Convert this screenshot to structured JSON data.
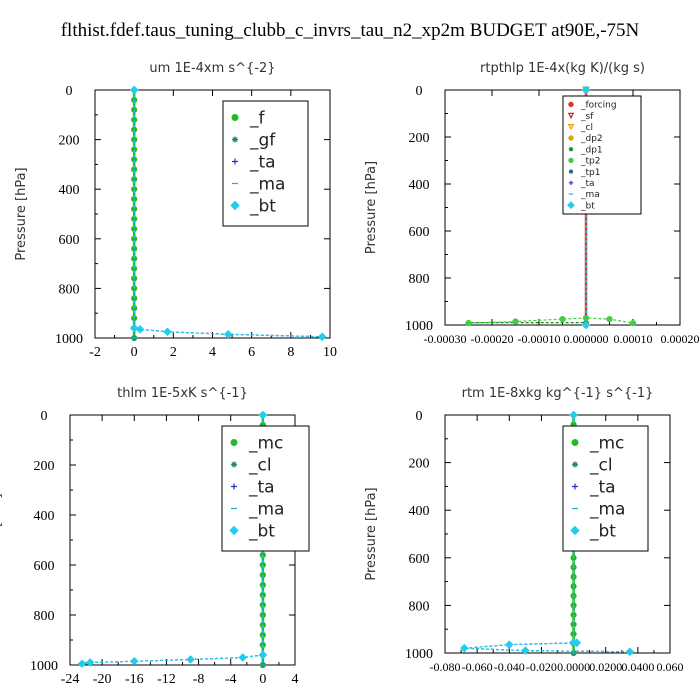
{
  "title": "flthist.fdef.taus_tuning_clubb_c_invrs_tau_n2_xp2m  BUDGET at90E,-75N",
  "chart_data": [
    {
      "type": "line",
      "title": "um   1E-4xm s^{-2}",
      "ylabel": "Pressure [hPa]",
      "xlim": [
        -2,
        10
      ],
      "ylim": [
        1000,
        0
      ],
      "xticks": [
        "-2",
        "0",
        "2",
        "4",
        "6",
        "8",
        "10"
      ],
      "yticks": [
        "0",
        "200",
        "400",
        "600",
        "800",
        "1000"
      ],
      "legend_position": "top-right",
      "legend_size": "large",
      "series": [
        {
          "name": "_f",
          "color": "#22bb22",
          "marker": "circle",
          "points": [
            [
              0,
              0
            ],
            [
              0,
              40
            ],
            [
              0,
              80
            ],
            [
              0,
              120
            ],
            [
              0,
              160
            ],
            [
              0,
              200
            ],
            [
              0,
              240
            ],
            [
              0,
              280
            ],
            [
              0,
              320
            ],
            [
              0,
              360
            ],
            [
              0,
              400
            ],
            [
              0,
              440
            ],
            [
              0,
              480
            ],
            [
              0,
              520
            ],
            [
              0,
              560
            ],
            [
              0,
              600
            ],
            [
              0,
              640
            ],
            [
              0,
              680
            ],
            [
              0,
              720
            ],
            [
              0,
              760
            ],
            [
              0,
              800
            ],
            [
              0,
              840
            ],
            [
              0,
              880
            ],
            [
              0,
              920
            ],
            [
              0,
              960
            ],
            [
              0,
              1000
            ]
          ]
        },
        {
          "name": "_gf",
          "color": "#228866",
          "marker": "star",
          "points": [
            [
              0,
              0
            ],
            [
              0,
              1000
            ]
          ]
        },
        {
          "name": "_ta",
          "color": "#2233cc",
          "marker": "plus",
          "points": [
            [
              0,
              0
            ],
            [
              0,
              960
            ],
            [
              0.3,
              965
            ],
            [
              1.7,
              975
            ],
            [
              4.8,
              985
            ],
            [
              9.6,
              995
            ]
          ]
        },
        {
          "name": "_ma",
          "color": "#22aadd",
          "marker": "dash",
          "points": [
            [
              0,
              0
            ],
            [
              0,
              1000
            ]
          ]
        },
        {
          "name": "_bt",
          "color": "#22ccee",
          "marker": "diamond",
          "points": [
            [
              0,
              0
            ],
            [
              0,
              960
            ],
            [
              0.3,
              965
            ],
            [
              1.7,
              975
            ],
            [
              4.8,
              985
            ],
            [
              9.6,
              995
            ]
          ]
        }
      ]
    },
    {
      "type": "line",
      "title": "rtpthlp  1E-4x(kg K)/(kg s)",
      "ylabel": "Pressure [hPa]",
      "xlim": [
        -0.0003,
        0.0002
      ],
      "ylim": [
        1000,
        0
      ],
      "xticks": [
        "-0.00030",
        "-0.00020",
        "-0.00010",
        "0.000000",
        "0.00010",
        "0.00020"
      ],
      "yticks": [
        "0",
        "200",
        "400",
        "600",
        "800",
        "1000"
      ],
      "legend_position": "top-right",
      "legend_size": "small",
      "series": [
        {
          "name": "_forcing",
          "color": "#dd3322",
          "marker": "circle",
          "points": [
            [
              0,
              0
            ],
            [
              0,
              1000
            ]
          ]
        },
        {
          "name": "_sf",
          "color": "#cc2222",
          "marker": "triangle",
          "points": [
            [
              0,
              0
            ],
            [
              0,
              1000
            ]
          ]
        },
        {
          "name": "_cl",
          "color": "#ee9900",
          "marker": "triangle",
          "points": [
            [
              0,
              0
            ],
            [
              0,
              1000
            ]
          ]
        },
        {
          "name": "_dp2",
          "color": "#ddaa00",
          "marker": "circle",
          "points": [
            [
              0,
              0
            ],
            [
              0,
              1000
            ]
          ]
        },
        {
          "name": "_dp1",
          "color": "#228822",
          "marker": "star",
          "points": [
            [
              0,
              0
            ],
            [
              0,
              990
            ],
            [
              -0.00025,
              990
            ]
          ]
        },
        {
          "name": "_tp2",
          "color": "#44cc44",
          "marker": "circle",
          "points": [
            [
              -0.00025,
              992
            ],
            [
              -0.00015,
              985
            ],
            [
              -5e-05,
              975
            ],
            [
              0,
              970
            ],
            [
              5e-05,
              975
            ],
            [
              0.0001,
              992
            ]
          ]
        },
        {
          "name": "_tp1",
          "color": "#226688",
          "marker": "star",
          "points": [
            [
              0,
              0
            ],
            [
              0,
              1000
            ]
          ]
        },
        {
          "name": "_ta",
          "color": "#2233cc",
          "marker": "plus",
          "points": [
            [
              0,
              0
            ],
            [
              0,
              1000
            ]
          ]
        },
        {
          "name": "_ma",
          "color": "#22aadd",
          "marker": "dash",
          "points": [
            [
              0,
              0
            ],
            [
              0,
              1000
            ]
          ]
        },
        {
          "name": "_bt",
          "color": "#22ccee",
          "marker": "diamond",
          "points": [
            [
              0,
              0
            ],
            [
              0,
              1000
            ]
          ]
        }
      ]
    },
    {
      "type": "line",
      "title": "thlm   1E-5xK s^{-1}",
      "ylabel": "Pressure [hPa]",
      "xlim": [
        -24,
        4
      ],
      "ylim": [
        1000,
        0
      ],
      "xticks": [
        "-24",
        "-20",
        "-16",
        "-12",
        "-8",
        "-4",
        "0",
        "4"
      ],
      "yticks": [
        "0",
        "200",
        "400",
        "600",
        "800",
        "1000"
      ],
      "legend_position": "top-right",
      "legend_size": "large",
      "series": [
        {
          "name": "_mc",
          "color": "#22bb22",
          "marker": "circle",
          "points": [
            [
              0,
              0
            ],
            [
              0,
              40
            ],
            [
              0,
              80
            ],
            [
              0,
              120
            ],
            [
              0,
              160
            ],
            [
              0,
              200
            ],
            [
              0,
              240
            ],
            [
              0,
              280
            ],
            [
              0,
              320
            ],
            [
              0,
              360
            ],
            [
              0,
              400
            ],
            [
              0,
              440
            ],
            [
              0,
              480
            ],
            [
              0,
              520
            ],
            [
              0,
              560
            ],
            [
              0,
              600
            ],
            [
              0,
              640
            ],
            [
              0,
              680
            ],
            [
              0,
              720
            ],
            [
              0,
              760
            ],
            [
              0,
              800
            ],
            [
              0,
              840
            ],
            [
              0,
              880
            ],
            [
              0,
              920
            ],
            [
              0,
              960
            ],
            [
              0,
              1000
            ]
          ]
        },
        {
          "name": "_cl",
          "color": "#228866",
          "marker": "star",
          "points": [
            [
              0,
              0
            ],
            [
              0,
              1000
            ]
          ]
        },
        {
          "name": "_ta",
          "color": "#2233cc",
          "marker": "plus",
          "points": [
            [
              0,
              0
            ],
            [
              0,
              960
            ],
            [
              -2.5,
              970
            ],
            [
              -9,
              978
            ],
            [
              -16,
              985
            ],
            [
              -21.5,
              990
            ],
            [
              -22.5,
              995
            ]
          ]
        },
        {
          "name": "_ma",
          "color": "#22aadd",
          "marker": "dash",
          "points": [
            [
              0,
              0
            ],
            [
              0,
              1000
            ]
          ]
        },
        {
          "name": "_bt",
          "color": "#22ccee",
          "marker": "diamond",
          "points": [
            [
              0,
              0
            ],
            [
              0,
              960
            ],
            [
              -2.5,
              970
            ],
            [
              -9,
              978
            ],
            [
              -16,
              985
            ],
            [
              -21.5,
              990
            ],
            [
              -22.5,
              995
            ]
          ]
        }
      ]
    },
    {
      "type": "line",
      "title": "rtm   1E-8xkg kg^{-1} s^{-1}",
      "ylabel": "Pressure [hPa]",
      "xlim": [
        -0.08,
        0.06
      ],
      "ylim": [
        1000,
        0
      ],
      "xticks": [
        "-0.080",
        "-0.060",
        "-0.040",
        "-0.020",
        "0.0000",
        "0.0200",
        "0.0400",
        "0.060"
      ],
      "yticks": [
        "0",
        "200",
        "400",
        "600",
        "800",
        "1000"
      ],
      "legend_position": "top-right",
      "legend_size": "large",
      "series": [
        {
          "name": "_mc",
          "color": "#22bb22",
          "marker": "circle",
          "points": [
            [
              0,
              0
            ],
            [
              0,
              40
            ],
            [
              0,
              80
            ],
            [
              0,
              120
            ],
            [
              0,
              160
            ],
            [
              0,
              200
            ],
            [
              0,
              240
            ],
            [
              0,
              280
            ],
            [
              0,
              320
            ],
            [
              0,
              360
            ],
            [
              0,
              400
            ],
            [
              0,
              440
            ],
            [
              0,
              480
            ],
            [
              0,
              520
            ],
            [
              0,
              560
            ],
            [
              0,
              600
            ],
            [
              0,
              640
            ],
            [
              0,
              680
            ],
            [
              0,
              720
            ],
            [
              0,
              760
            ],
            [
              0,
              800
            ],
            [
              0,
              840
            ],
            [
              0,
              880
            ],
            [
              0,
              920
            ],
            [
              0,
              960
            ],
            [
              0,
              1000
            ]
          ]
        },
        {
          "name": "_cl",
          "color": "#228866",
          "marker": "star",
          "points": [
            [
              0,
              0
            ],
            [
              0,
              1000
            ]
          ]
        },
        {
          "name": "_ta",
          "color": "#2233cc",
          "marker": "plus",
          "points": [
            [
              0,
              0
            ],
            [
              0,
              955
            ],
            [
              0.002,
              957
            ],
            [
              -0.04,
              965
            ],
            [
              -0.068,
              980
            ],
            [
              -0.03,
              990
            ],
            [
              0.035,
              995
            ]
          ]
        },
        {
          "name": "_ma",
          "color": "#22aadd",
          "marker": "dash",
          "points": [
            [
              0,
              0
            ],
            [
              0,
              1000
            ]
          ]
        },
        {
          "name": "_bt",
          "color": "#22ccee",
          "marker": "diamond",
          "points": [
            [
              0,
              0
            ],
            [
              0,
              955
            ],
            [
              0.002,
              957
            ],
            [
              -0.04,
              965
            ],
            [
              -0.068,
              980
            ],
            [
              -0.03,
              990
            ],
            [
              0.035,
              995
            ]
          ]
        }
      ]
    }
  ]
}
